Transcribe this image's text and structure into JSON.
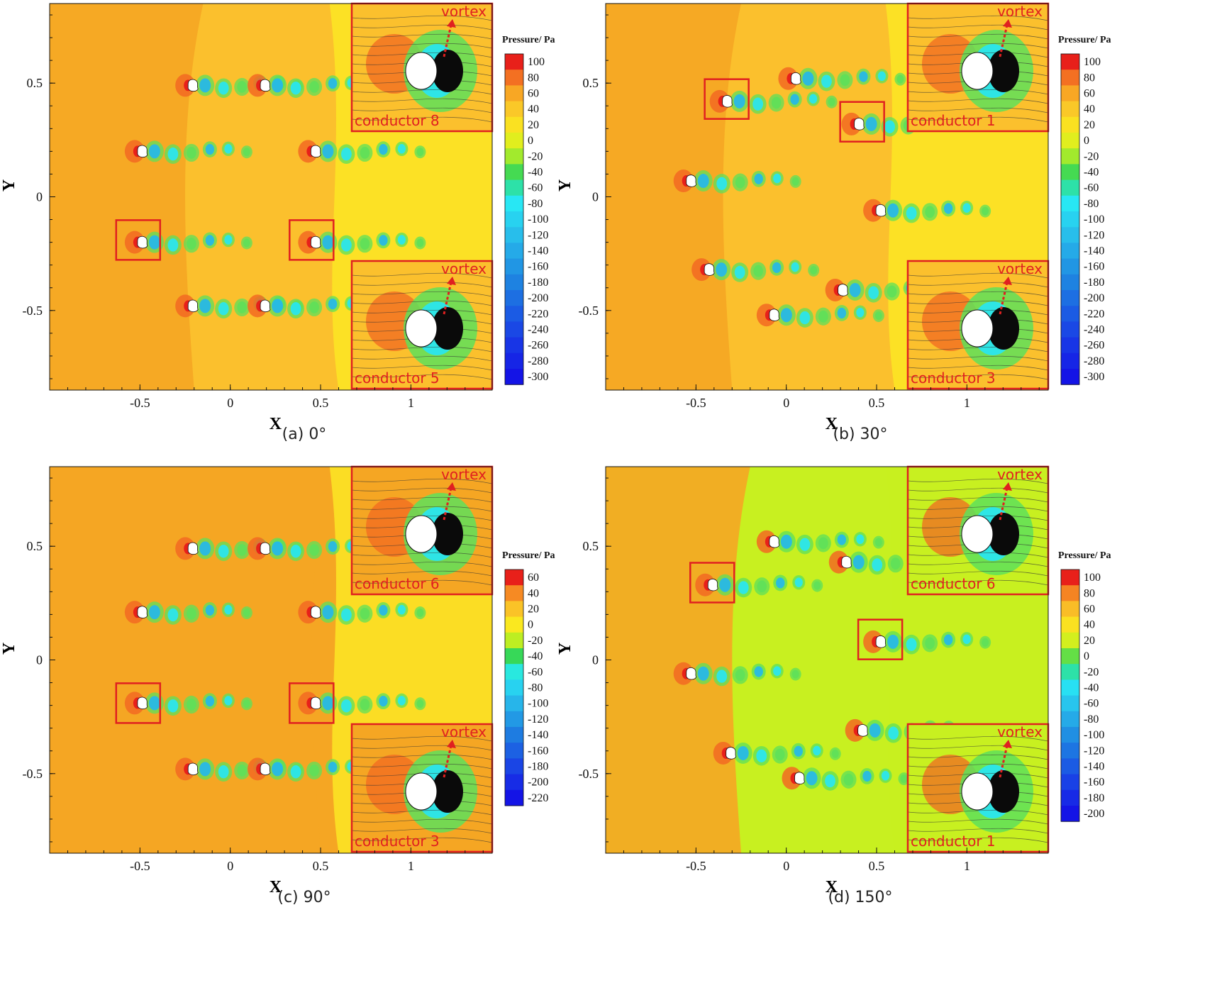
{
  "figure": {
    "panels": [
      {
        "caption": "(a) 0°",
        "colorbar_title": "Pressure/ Pa",
        "colorbar_ticks": [
          "100",
          "80",
          "60",
          "40",
          "20",
          "0",
          "-20",
          "-40",
          "-60",
          "-80",
          "-100",
          "-120",
          "-140",
          "-160",
          "-180",
          "-200",
          "-220",
          "-240",
          "-260",
          "-280",
          "-300"
        ],
        "insets": [
          {
            "label": "conductor 8",
            "annotation": "vortex"
          },
          {
            "label": "conductor 5",
            "annotation": "vortex"
          }
        ]
      },
      {
        "caption": "(b) 30°",
        "colorbar_title": "Pressure/ Pa",
        "colorbar_ticks": [
          "100",
          "80",
          "60",
          "40",
          "20",
          "0",
          "-20",
          "-40",
          "-60",
          "-80",
          "-100",
          "-120",
          "-140",
          "-160",
          "-180",
          "-200",
          "-220",
          "-240",
          "-260",
          "-280",
          "-300"
        ],
        "insets": [
          {
            "label": "conductor 1",
            "annotation": "vortex"
          },
          {
            "label": "conductor 3",
            "annotation": "vortex"
          }
        ]
      },
      {
        "caption": "(c) 90°",
        "colorbar_title": "Pressure/ Pa",
        "colorbar_ticks": [
          "60",
          "40",
          "20",
          "0",
          "-20",
          "-40",
          "-60",
          "-80",
          "-100",
          "-120",
          "-140",
          "-160",
          "-180",
          "-200",
          "-220"
        ],
        "insets": [
          {
            "label": "conductor 6",
            "annotation": "vortex"
          },
          {
            "label": "conductor 3",
            "annotation": "vortex"
          }
        ]
      },
      {
        "caption": "(d) 150°",
        "colorbar_title": "Pressure/ Pa",
        "colorbar_ticks": [
          "100",
          "80",
          "60",
          "40",
          "20",
          "0",
          "-20",
          "-40",
          "-60",
          "-80",
          "-100",
          "-120",
          "-140",
          "-160",
          "-180",
          "-200"
        ],
        "insets": [
          {
            "label": "conductor 6",
            "annotation": "vortex"
          },
          {
            "label": "conductor 1",
            "annotation": "vortex"
          }
        ]
      }
    ]
  },
  "chart_data": [
    {
      "type": "heatmap",
      "title": "(a) 0°",
      "xlabel": "X",
      "ylabel": "Y",
      "xlim": [
        -1.0,
        1.45
      ],
      "ylim": [
        -0.85,
        0.85
      ],
      "xticks": [
        "-0.5",
        "0",
        "0.5",
        "1"
      ],
      "yticks": [
        "0.5",
        "0",
        "-0.5"
      ],
      "colorbar": {
        "label": "Pressure/ Pa",
        "range": [
          -300,
          100
        ]
      },
      "conductors": [
        {
          "x": -0.21,
          "y": 0.49
        },
        {
          "x": 0.19,
          "y": 0.49
        },
        {
          "x": -0.49,
          "y": 0.2
        },
        {
          "x": 0.47,
          "y": 0.2
        },
        {
          "x": -0.49,
          "y": -0.2
        },
        {
          "x": 0.47,
          "y": -0.2
        },
        {
          "x": -0.21,
          "y": -0.48
        },
        {
          "x": 0.19,
          "y": -0.48
        }
      ],
      "highlighted": [
        {
          "x": -0.51,
          "y": -0.19
        },
        {
          "x": 0.45,
          "y": -0.19
        }
      ],
      "grid": false
    },
    {
      "type": "heatmap",
      "title": "(b) 30°",
      "xlabel": "X",
      "ylabel": "Y",
      "xlim": [
        -1.0,
        1.45
      ],
      "ylim": [
        -0.85,
        0.85
      ],
      "xticks": [
        "-0.5",
        "0",
        "0.5",
        "1"
      ],
      "yticks": [
        "0.5",
        "0",
        "-0.5"
      ],
      "colorbar": {
        "label": "Pressure/ Pa",
        "range": [
          -300,
          100
        ]
      },
      "conductors": [
        {
          "x": 0.05,
          "y": 0.52
        },
        {
          "x": -0.33,
          "y": 0.42
        },
        {
          "x": 0.4,
          "y": 0.32
        },
        {
          "x": -0.53,
          "y": 0.07
        },
        {
          "x": 0.52,
          "y": -0.06
        },
        {
          "x": -0.43,
          "y": -0.32
        },
        {
          "x": 0.31,
          "y": -0.41
        },
        {
          "x": -0.07,
          "y": -0.52
        }
      ],
      "highlighted": [
        {
          "x": -0.33,
          "y": 0.43
        },
        {
          "x": 0.42,
          "y": 0.33
        }
      ],
      "grid": false
    },
    {
      "type": "heatmap",
      "title": "(c) 90°",
      "xlabel": "X",
      "ylabel": "Y",
      "xlim": [
        -1.0,
        1.45
      ],
      "ylim": [
        -0.85,
        0.85
      ],
      "xticks": [
        "-0.5",
        "0",
        "0.5",
        "1"
      ],
      "yticks": [
        "0.5",
        "0",
        "-0.5"
      ],
      "colorbar": {
        "label": "Pressure/ Pa",
        "range": [
          -220,
          60
        ]
      },
      "conductors": [
        {
          "x": -0.21,
          "y": 0.49
        },
        {
          "x": 0.19,
          "y": 0.49
        },
        {
          "x": -0.49,
          "y": 0.21
        },
        {
          "x": 0.47,
          "y": 0.21
        },
        {
          "x": -0.49,
          "y": -0.19
        },
        {
          "x": 0.47,
          "y": -0.19
        },
        {
          "x": -0.21,
          "y": -0.48
        },
        {
          "x": 0.19,
          "y": -0.48
        }
      ],
      "highlighted": [
        {
          "x": -0.51,
          "y": -0.19
        },
        {
          "x": 0.45,
          "y": -0.19
        }
      ],
      "grid": false
    },
    {
      "type": "heatmap",
      "title": "(d) 150°",
      "xlabel": "X",
      "ylabel": "Y",
      "xlim": [
        -1.0,
        1.45
      ],
      "ylim": [
        -0.85,
        0.85
      ],
      "xticks": [
        "-0.5",
        "0",
        "0.5",
        "1"
      ],
      "yticks": [
        "0.5",
        "0",
        "-0.5"
      ],
      "colorbar": {
        "label": "Pressure/ Pa",
        "range": [
          -200,
          100
        ]
      },
      "conductors": [
        {
          "x": -0.07,
          "y": 0.52
        },
        {
          "x": -0.41,
          "y": 0.33
        },
        {
          "x": 0.33,
          "y": 0.43
        },
        {
          "x": 0.52,
          "y": 0.08
        },
        {
          "x": -0.53,
          "y": -0.06
        },
        {
          "x": 0.42,
          "y": -0.31
        },
        {
          "x": -0.31,
          "y": -0.41
        },
        {
          "x": 0.07,
          "y": -0.52
        }
      ],
      "highlighted": [
        {
          "x": -0.41,
          "y": 0.34
        },
        {
          "x": 0.52,
          "y": 0.09
        }
      ],
      "grid": false
    }
  ]
}
